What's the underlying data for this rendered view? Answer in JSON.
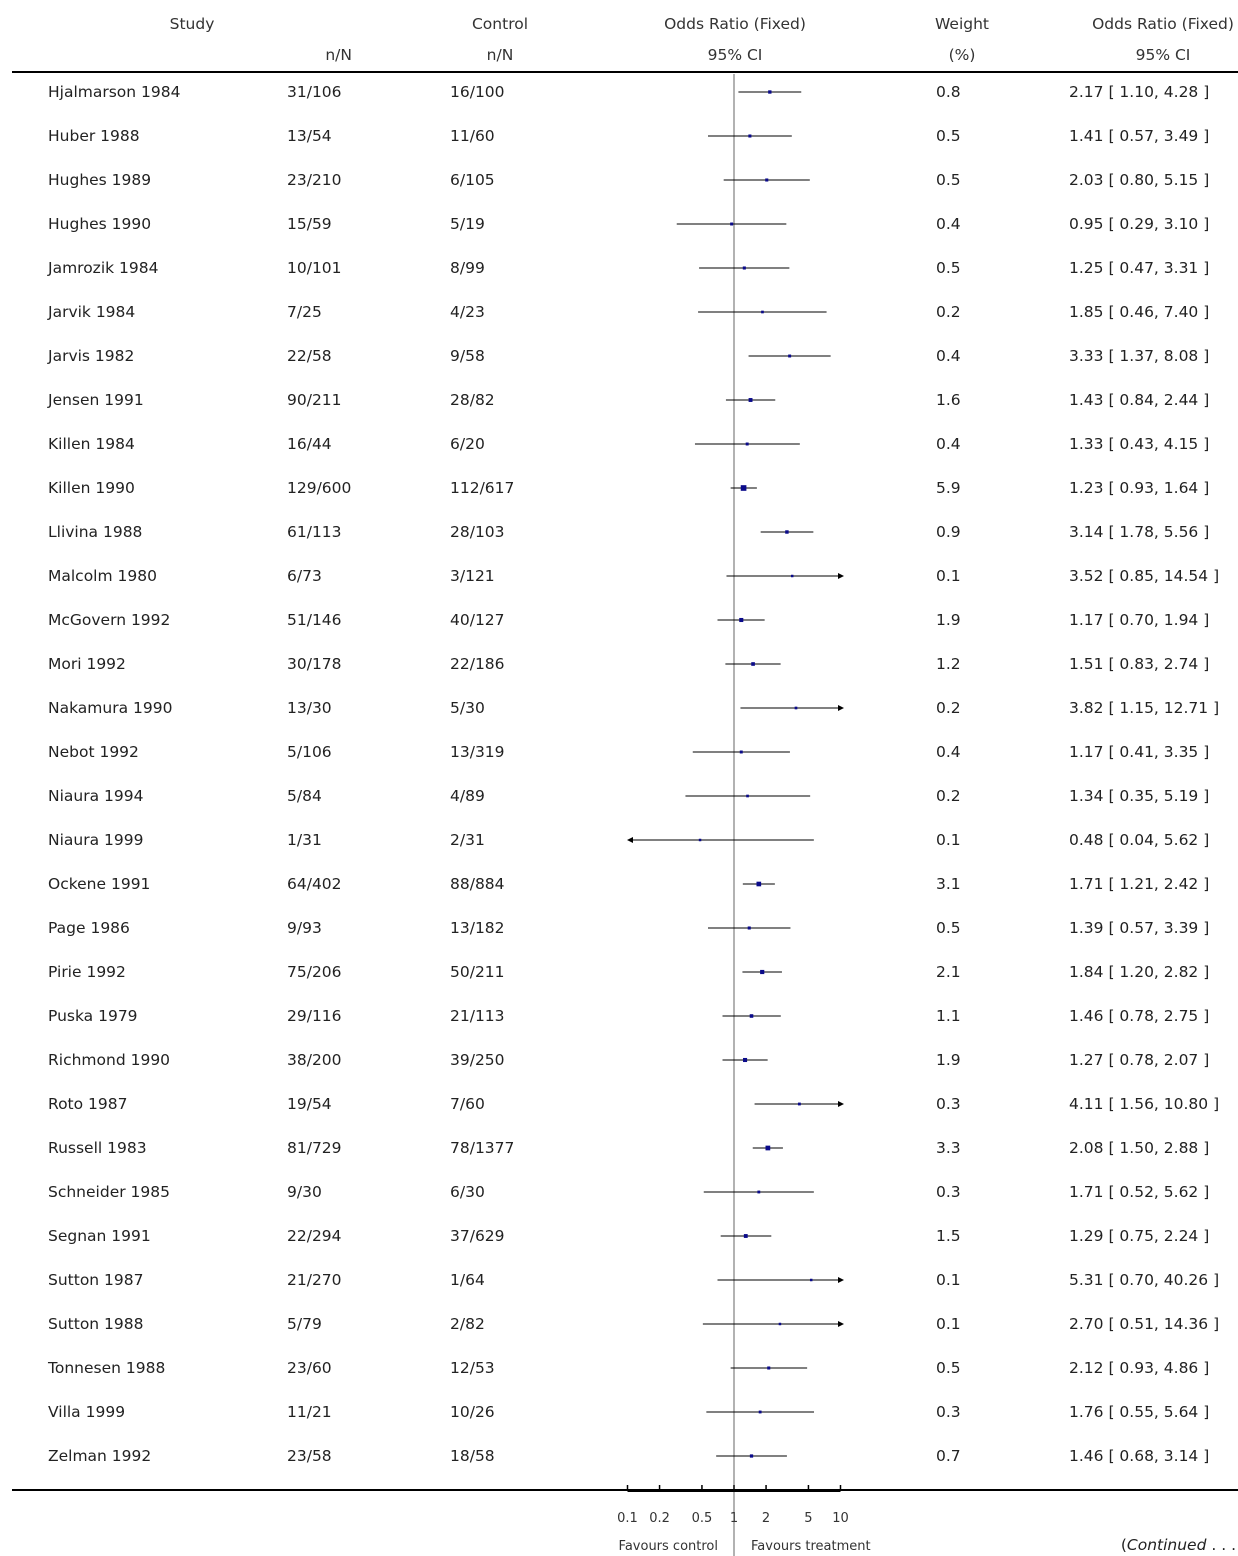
{
  "header": {
    "col_study": "Study",
    "col_treatment_sub": "n/N",
    "col_control": "Control",
    "col_control_sub": "n/N",
    "col_or": "Odds Ratio (Fixed)",
    "col_or_sub": "95% CI",
    "col_weight": "Weight",
    "col_weight_sub": "(%)",
    "col_or2": "Odds Ratio (Fixed)",
    "col_or2_sub": "95% CI"
  },
  "footer": {
    "favours_left": "Favours control",
    "favours_right": "Favours treatment",
    "continued_open": "(",
    "continued_word": "Continued",
    "continued_dots": " . . ."
  },
  "colors": {
    "marker": "#0a0a8a",
    "line": "#000000",
    "refline": "#666666"
  },
  "chart_data": {
    "type": "forest",
    "xscale": "log",
    "xlim": [
      0.1,
      10
    ],
    "ticks": [
      0.1,
      0.2,
      0.5,
      1,
      2,
      5,
      10
    ],
    "tick_labels": [
      "0.1",
      "0.2",
      "0.5",
      "1",
      "2",
      "5",
      "10"
    ],
    "reference": 1,
    "studies": [
      {
        "study": "Hjalmarson 1984",
        "treatment": "31/106",
        "control": "16/100",
        "weight": "0.8",
        "ci_text": "2.17 [ 1.10, 4.28 ]",
        "or": 2.17,
        "lo": 1.1,
        "hi": 4.28
      },
      {
        "study": "Huber 1988",
        "treatment": "13/54",
        "control": "11/60",
        "weight": "0.5",
        "ci_text": "1.41 [ 0.57, 3.49 ]",
        "or": 1.41,
        "lo": 0.57,
        "hi": 3.49
      },
      {
        "study": "Hughes 1989",
        "treatment": "23/210",
        "control": "6/105",
        "weight": "0.5",
        "ci_text": "2.03 [ 0.80, 5.15 ]",
        "or": 2.03,
        "lo": 0.8,
        "hi": 5.15
      },
      {
        "study": "Hughes 1990",
        "treatment": "15/59",
        "control": "5/19",
        "weight": "0.4",
        "ci_text": "0.95 [ 0.29, 3.10 ]",
        "or": 0.95,
        "lo": 0.29,
        "hi": 3.1
      },
      {
        "study": "Jamrozik 1984",
        "treatment": "10/101",
        "control": "8/99",
        "weight": "0.5",
        "ci_text": "1.25 [ 0.47, 3.31 ]",
        "or": 1.25,
        "lo": 0.47,
        "hi": 3.31
      },
      {
        "study": "Jarvik 1984",
        "treatment": "7/25",
        "control": "4/23",
        "weight": "0.2",
        "ci_text": "1.85 [ 0.46, 7.40 ]",
        "or": 1.85,
        "lo": 0.46,
        "hi": 7.4
      },
      {
        "study": "Jarvis 1982",
        "treatment": "22/58",
        "control": "9/58",
        "weight": "0.4",
        "ci_text": "3.33 [ 1.37, 8.08 ]",
        "or": 3.33,
        "lo": 1.37,
        "hi": 8.08
      },
      {
        "study": "Jensen 1991",
        "treatment": "90/211",
        "control": "28/82",
        "weight": "1.6",
        "ci_text": "1.43 [ 0.84, 2.44 ]",
        "or": 1.43,
        "lo": 0.84,
        "hi": 2.44
      },
      {
        "study": "Killen 1984",
        "treatment": "16/44",
        "control": "6/20",
        "weight": "0.4",
        "ci_text": "1.33 [ 0.43, 4.15 ]",
        "or": 1.33,
        "lo": 0.43,
        "hi": 4.15
      },
      {
        "study": "Killen 1990",
        "treatment": "129/600",
        "control": "112/617",
        "weight": "5.9",
        "ci_text": "1.23 [ 0.93, 1.64 ]",
        "or": 1.23,
        "lo": 0.93,
        "hi": 1.64
      },
      {
        "study": "Llivina 1988",
        "treatment": "61/113",
        "control": "28/103",
        "weight": "0.9",
        "ci_text": "3.14 [ 1.78, 5.56 ]",
        "or": 3.14,
        "lo": 1.78,
        "hi": 5.56
      },
      {
        "study": "Malcolm 1980",
        "treatment": "6/73",
        "control": "3/121",
        "weight": "0.1",
        "ci_text": "3.52 [ 0.85, 14.54 ]",
        "or": 3.52,
        "lo": 0.85,
        "hi": 14.54
      },
      {
        "study": "McGovern 1992",
        "treatment": "51/146",
        "control": "40/127",
        "weight": "1.9",
        "ci_text": "1.17 [ 0.70, 1.94 ]",
        "or": 1.17,
        "lo": 0.7,
        "hi": 1.94
      },
      {
        "study": "Mori 1992",
        "treatment": "30/178",
        "control": "22/186",
        "weight": "1.2",
        "ci_text": "1.51 [ 0.83, 2.74 ]",
        "or": 1.51,
        "lo": 0.83,
        "hi": 2.74
      },
      {
        "study": "Nakamura 1990",
        "treatment": "13/30",
        "control": "5/30",
        "weight": "0.2",
        "ci_text": "3.82 [ 1.15, 12.71 ]",
        "or": 3.82,
        "lo": 1.15,
        "hi": 12.71
      },
      {
        "study": "Nebot 1992",
        "treatment": "5/106",
        "control": "13/319",
        "weight": "0.4",
        "ci_text": "1.17 [ 0.41, 3.35 ]",
        "or": 1.17,
        "lo": 0.41,
        "hi": 3.35
      },
      {
        "study": "Niaura 1994",
        "treatment": "5/84",
        "control": "4/89",
        "weight": "0.2",
        "ci_text": "1.34 [ 0.35, 5.19 ]",
        "or": 1.34,
        "lo": 0.35,
        "hi": 5.19
      },
      {
        "study": "Niaura 1999",
        "treatment": "1/31",
        "control": "2/31",
        "weight": "0.1",
        "ci_text": "0.48 [ 0.04, 5.62 ]",
        "or": 0.48,
        "lo": 0.04,
        "hi": 5.62
      },
      {
        "study": "Ockene 1991",
        "treatment": "64/402",
        "control": "88/884",
        "weight": "3.1",
        "ci_text": "1.71 [ 1.21, 2.42 ]",
        "or": 1.71,
        "lo": 1.21,
        "hi": 2.42
      },
      {
        "study": "Page 1986",
        "treatment": "9/93",
        "control": "13/182",
        "weight": "0.5",
        "ci_text": "1.39 [ 0.57, 3.39 ]",
        "or": 1.39,
        "lo": 0.57,
        "hi": 3.39
      },
      {
        "study": "Pirie 1992",
        "treatment": "75/206",
        "control": "50/211",
        "weight": "2.1",
        "ci_text": "1.84 [ 1.20, 2.82 ]",
        "or": 1.84,
        "lo": 1.2,
        "hi": 2.82
      },
      {
        "study": "Puska 1979",
        "treatment": "29/116",
        "control": "21/113",
        "weight": "1.1",
        "ci_text": "1.46 [ 0.78, 2.75 ]",
        "or": 1.46,
        "lo": 0.78,
        "hi": 2.75
      },
      {
        "study": "Richmond 1990",
        "treatment": "38/200",
        "control": "39/250",
        "weight": "1.9",
        "ci_text": "1.27 [ 0.78, 2.07 ]",
        "or": 1.27,
        "lo": 0.78,
        "hi": 2.07
      },
      {
        "study": "Roto 1987",
        "treatment": "19/54",
        "control": "7/60",
        "weight": "0.3",
        "ci_text": "4.11 [ 1.56, 10.80 ]",
        "or": 4.11,
        "lo": 1.56,
        "hi": 10.8
      },
      {
        "study": "Russell 1983",
        "treatment": "81/729",
        "control": "78/1377",
        "weight": "3.3",
        "ci_text": "2.08 [ 1.50, 2.88 ]",
        "or": 2.08,
        "lo": 1.5,
        "hi": 2.88
      },
      {
        "study": "Schneider 1985",
        "treatment": "9/30",
        "control": "6/30",
        "weight": "0.3",
        "ci_text": "1.71 [ 0.52, 5.62 ]",
        "or": 1.71,
        "lo": 0.52,
        "hi": 5.62
      },
      {
        "study": "Segnan 1991",
        "treatment": "22/294",
        "control": "37/629",
        "weight": "1.5",
        "ci_text": "1.29 [ 0.75, 2.24 ]",
        "or": 1.29,
        "lo": 0.75,
        "hi": 2.24
      },
      {
        "study": "Sutton 1987",
        "treatment": "21/270",
        "control": "1/64",
        "weight": "0.1",
        "ci_text": "5.31 [ 0.70, 40.26 ]",
        "or": 5.31,
        "lo": 0.7,
        "hi": 40.26
      },
      {
        "study": "Sutton 1988",
        "treatment": "5/79",
        "control": "2/82",
        "weight": "0.1",
        "ci_text": "2.70 [ 0.51, 14.36 ]",
        "or": 2.7,
        "lo": 0.51,
        "hi": 14.36
      },
      {
        "study": "Tonnesen 1988",
        "treatment": "23/60",
        "control": "12/53",
        "weight": "0.5",
        "ci_text": "2.12 [ 0.93, 4.86 ]",
        "or": 2.12,
        "lo": 0.93,
        "hi": 4.86
      },
      {
        "study": "Villa 1999",
        "treatment": "11/21",
        "control": "10/26",
        "weight": "0.3",
        "ci_text": "1.76 [ 0.55, 5.64 ]",
        "or": 1.76,
        "lo": 0.55,
        "hi": 5.64
      },
      {
        "study": "Zelman 1992",
        "treatment": "23/58",
        "control": "18/58",
        "weight": "0.7",
        "ci_text": "1.46 [ 0.68, 3.14 ]",
        "or": 1.46,
        "lo": 0.68,
        "hi": 3.14
      }
    ]
  }
}
